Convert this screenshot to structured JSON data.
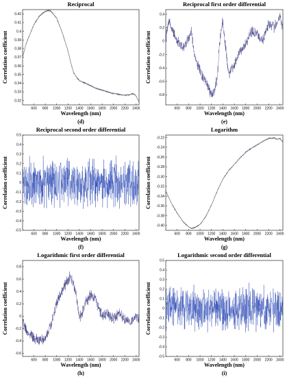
{
  "chart_data": [
    {
      "id": "d",
      "type": "line",
      "title": "Reciprocal",
      "xlabel": "Wavelength (nm)",
      "ylabel": "Correlation coefficient",
      "panel_letter": "(d)",
      "xlim": [
        400,
        2450
      ],
      "ylim": [
        0.315,
        0.425
      ],
      "xticks": [
        600,
        800,
        1000,
        1200,
        1400,
        1600,
        1800,
        2000,
        2200,
        2400
      ],
      "yticks": [
        0.32,
        0.33,
        0.34,
        0.35,
        0.36,
        0.37,
        0.38,
        0.39,
        0.4,
        0.41,
        0.42
      ],
      "ytick_labels": [
        "0.32",
        "0.33",
        "0.34",
        "0.35",
        "0.36",
        "0.37",
        "0.38",
        "0.39",
        "0.4",
        "0.41",
        "0.42"
      ],
      "noise": 0.0006,
      "color": "#555566",
      "series": [
        {
          "x": [
            400,
            450,
            500,
            600,
            700,
            800,
            850,
            900,
            1000,
            1100,
            1200,
            1250,
            1300,
            1350,
            1400,
            1500,
            1600,
            1700,
            1800,
            1900,
            2000,
            2100,
            2200,
            2300,
            2350,
            2400,
            2450
          ],
          "values": [
            0.37,
            0.383,
            0.392,
            0.408,
            0.418,
            0.423,
            0.424,
            0.423,
            0.415,
            0.398,
            0.377,
            0.363,
            0.352,
            0.347,
            0.343,
            0.34,
            0.337,
            0.334,
            0.332,
            0.33,
            0.328,
            0.327,
            0.326,
            0.327,
            0.328,
            0.325,
            0.318
          ]
        }
      ]
    },
    {
      "id": "e",
      "type": "line",
      "title": "Reciprocal first order differential",
      "xlabel": "Wavelength (nm)",
      "ylabel": "Correlation coefficient",
      "panel_letter": "(e)",
      "xlim": [
        400,
        2450
      ],
      "ylim": [
        -0.95,
        0.47
      ],
      "xticks": [
        600,
        800,
        1000,
        1200,
        1400,
        1600,
        1800,
        2000,
        2200,
        2400
      ],
      "yticks": [
        -0.8,
        -0.6,
        -0.4,
        -0.2,
        0,
        0.2,
        0.4
      ],
      "ytick_labels": [
        "-0.8",
        "-0.6",
        "-0.4",
        "-0.2",
        "0",
        "0.2",
        "0.4"
      ],
      "noise": 0.06,
      "color": "#2a2a7a",
      "series": [
        {
          "x": [
            400,
            450,
            500,
            600,
            700,
            800,
            850,
            900,
            1000,
            1100,
            1150,
            1200,
            1250,
            1300,
            1350,
            1400,
            1450,
            1500,
            1600,
            1700,
            1800,
            1900,
            2000,
            2100,
            2200,
            2300,
            2400,
            2450
          ],
          "values": [
            0.05,
            0.3,
            0.2,
            0.0,
            -0.1,
            0.05,
            0.15,
            -0.2,
            -0.45,
            -0.6,
            -0.7,
            -0.8,
            -0.75,
            -0.55,
            0.05,
            0.3,
            -0.1,
            -0.5,
            -0.35,
            -0.15,
            -0.05,
            0.15,
            0.1,
            0.0,
            0.25,
            0.2,
            0.35,
            0.2
          ]
        }
      ]
    },
    {
      "id": "f",
      "type": "line",
      "title": "Reciprocal second order differential",
      "xlabel": "Wavelength (nm)",
      "ylabel": "Correlation coefficient",
      "panel_letter": "(f)",
      "xlim": [
        400,
        2450
      ],
      "ylim": [
        -0.5,
        0.5
      ],
      "xticks": [
        600,
        800,
        1000,
        1200,
        1400,
        1600,
        1800,
        2000,
        2200,
        2400
      ],
      "yticks": [
        -0.5,
        -0.4,
        -0.3,
        -0.2,
        -0.1,
        0,
        0.1,
        0.2,
        0.3,
        0.4,
        0.5
      ],
      "ytick_labels": [
        "-0.5",
        "-0.4",
        "-0.3",
        "-0.2",
        "-0.1",
        "0",
        "0.1",
        "0.2",
        "0.3",
        "0.4",
        "0.5"
      ],
      "noise": 0.2,
      "color": "#1f3fb0",
      "series": [
        {
          "x": [
            400,
            2450
          ],
          "values": [
            0,
            0
          ]
        }
      ]
    },
    {
      "id": "g",
      "type": "line",
      "title": "Logarithm",
      "xlabel": "Wavelength (nm)",
      "ylabel": "Correlation coefficient",
      "panel_letter": "(g)",
      "xlim": [
        400,
        2450
      ],
      "ylim": [
        -0.41,
        -0.215
      ],
      "xticks": [
        600,
        800,
        1000,
        1200,
        1400,
        1600,
        1800,
        2000,
        2200,
        2400
      ],
      "yticks": [
        -0.4,
        -0.38,
        -0.36,
        -0.34,
        -0.32,
        -0.3,
        -0.28,
        -0.26,
        -0.24,
        -0.22
      ],
      "ytick_labels": [
        "-0.40",
        "-0.38",
        "-0.36",
        "-0.34",
        "-0.32",
        "-0.30",
        "-0.28",
        "-0.26",
        "-0.24",
        "-0.22"
      ],
      "noise": 0.0008,
      "color": "#555566",
      "series": [
        {
          "x": [
            400,
            500,
            600,
            700,
            800,
            850,
            900,
            1000,
            1100,
            1200,
            1300,
            1400,
            1500,
            1600,
            1700,
            1800,
            1900,
            2000,
            2100,
            2200,
            2300,
            2350,
            2400,
            2450
          ],
          "values": [
            -0.33,
            -0.355,
            -0.375,
            -0.392,
            -0.403,
            -0.406,
            -0.405,
            -0.398,
            -0.382,
            -0.358,
            -0.33,
            -0.305,
            -0.288,
            -0.275,
            -0.262,
            -0.25,
            -0.242,
            -0.235,
            -0.228,
            -0.222,
            -0.221,
            -0.224,
            -0.222,
            -0.23
          ]
        }
      ]
    },
    {
      "id": "h",
      "type": "line",
      "title": "Logarithmic first order differential",
      "xlabel": "Wavelength (nm)",
      "ylabel": "Correlation coefficient",
      "panel_letter": "(h)",
      "xlim": [
        400,
        2450
      ],
      "ylim": [
        -0.65,
        0.9
      ],
      "xticks": [
        600,
        800,
        1000,
        1200,
        1400,
        1600,
        1800,
        2000,
        2200,
        2400
      ],
      "yticks": [
        -0.6,
        -0.4,
        -0.2,
        0,
        0.2,
        0.4,
        0.6,
        0.8
      ],
      "ytick_labels": [
        "-0.6",
        "-0.4",
        "-0.2",
        "0",
        "0.2",
        "0.4",
        "0.6",
        "0.8"
      ],
      "noise": 0.07,
      "color": "#2a2a7a",
      "series": [
        {
          "x": [
            400,
            500,
            600,
            700,
            800,
            900,
            1000,
            1100,
            1200,
            1250,
            1300,
            1350,
            1400,
            1450,
            1500,
            1600,
            1700,
            1800,
            1900,
            2000,
            2100,
            2200,
            2300,
            2400,
            2450
          ],
          "values": [
            -0.1,
            -0.3,
            -0.35,
            -0.4,
            -0.35,
            -0.15,
            0.2,
            0.4,
            0.6,
            0.65,
            0.5,
            0.3,
            -0.05,
            0.05,
            0.2,
            0.35,
            0.25,
            0.0,
            0.05,
            -0.05,
            0.05,
            -0.05,
            -0.1,
            0.0,
            -0.05
          ]
        }
      ]
    },
    {
      "id": "i",
      "type": "line",
      "title": "Logarithmic second order differential",
      "xlabel": "Wavelength (nm)",
      "ylabel": "Correlation coefficient",
      "panel_letter": "(i)",
      "xlim": [
        400,
        2450
      ],
      "ylim": [
        -0.5,
        0.5
      ],
      "xticks": [
        600,
        800,
        1000,
        1200,
        1400,
        1600,
        1800,
        2000,
        2200,
        2400
      ],
      "yticks": [
        -0.5,
        -0.4,
        -0.3,
        -0.2,
        -0.1,
        0,
        0.1,
        0.2,
        0.3,
        0.4,
        0.5
      ],
      "ytick_labels": [
        "-0.5",
        "-0.4",
        "-0.3",
        "-0.2",
        "-0.1",
        "0",
        "0.1",
        "0.2",
        "0.3",
        "0.4",
        "0.5"
      ],
      "noise": 0.18,
      "color": "#1f3fb0",
      "series": [
        {
          "x": [
            400,
            2450
          ],
          "values": [
            0,
            0
          ]
        }
      ]
    }
  ]
}
